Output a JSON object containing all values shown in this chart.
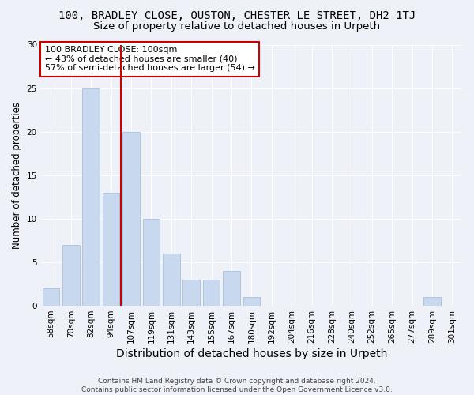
{
  "title": "100, BRADLEY CLOSE, OUSTON, CHESTER LE STREET, DH2 1TJ",
  "subtitle": "Size of property relative to detached houses in Urpeth",
  "xlabel": "Distribution of detached houses by size in Urpeth",
  "ylabel": "Number of detached properties",
  "categories": [
    "58sqm",
    "70sqm",
    "82sqm",
    "94sqm",
    "107sqm",
    "119sqm",
    "131sqm",
    "143sqm",
    "155sqm",
    "167sqm",
    "180sqm",
    "192sqm",
    "204sqm",
    "216sqm",
    "228sqm",
    "240sqm",
    "252sqm",
    "265sqm",
    "277sqm",
    "289sqm",
    "301sqm"
  ],
  "values": [
    2,
    7,
    25,
    13,
    20,
    10,
    6,
    3,
    3,
    4,
    1,
    0,
    0,
    0,
    0,
    0,
    0,
    0,
    0,
    1,
    0
  ],
  "bar_color": "#c8d8ee",
  "bar_edge_color": "#a0b8d8",
  "ref_line_color": "#cc0000",
  "ref_line_x": 3.5,
  "annotation_line1": "100 BRADLEY CLOSE: 100sqm",
  "annotation_line2": "← 43% of detached houses are smaller (40)",
  "annotation_line3": "57% of semi-detached houses are larger (54) →",
  "annotation_box_color": "#ffffff",
  "annotation_box_edge_color": "#cc0000",
  "ylim": [
    0,
    30
  ],
  "yticks": [
    0,
    5,
    10,
    15,
    20,
    25,
    30
  ],
  "background_color": "#eef2f8",
  "grid_color": "#ffffff",
  "footer": "Contains HM Land Registry data © Crown copyright and database right 2024.\nContains public sector information licensed under the Open Government Licence v3.0.",
  "title_fontsize": 10,
  "subtitle_fontsize": 9.5,
  "xlabel_fontsize": 10,
  "ylabel_fontsize": 8.5,
  "tick_fontsize": 7.5,
  "footer_fontsize": 6.5,
  "ann_fontsize": 8
}
